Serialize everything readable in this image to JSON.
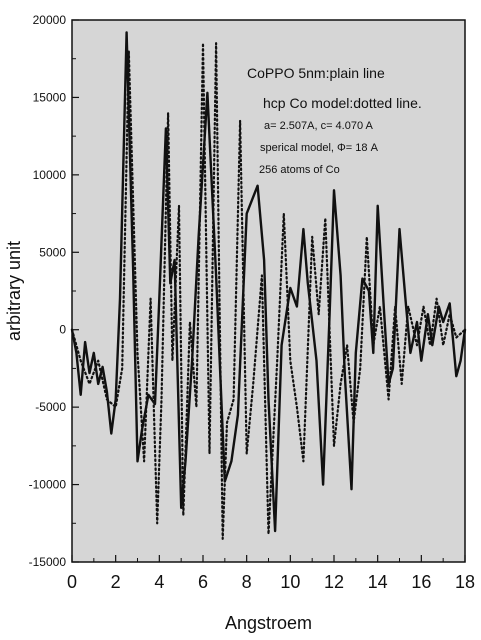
{
  "chart_data": {
    "type": "line",
    "title": "",
    "xlabel": "Angstroem",
    "ylabel": "arbitrary unit",
    "xlim": [
      0,
      18
    ],
    "ylim": [
      -15000,
      20000
    ],
    "xticks": [
      0,
      2,
      4,
      6,
      8,
      10,
      12,
      14,
      16,
      18
    ],
    "yticks": [
      -15000,
      -10000,
      -5000,
      0,
      5000,
      10000,
      15000,
      20000
    ],
    "grid": false,
    "legend": "none",
    "colors": {
      "background": "#d6d6d6",
      "line": "#111111"
    },
    "annotations": [
      "CoPPO 5nm:plain line",
      "hcp Co model:dotted line.",
      "a= 2.507A, c= 4.070 A",
      "sperical model, Φ= 18 A",
      "256 atoms of Co"
    ],
    "series": [
      {
        "style": "solid",
        "x": [
          0.0,
          0.2,
          0.4,
          0.6,
          0.8,
          1.0,
          1.2,
          1.4,
          1.6,
          1.8,
          2.0,
          2.2,
          2.5,
          2.8,
          3.0,
          3.2,
          3.5,
          3.8,
          4.0,
          4.3,
          4.5,
          4.7,
          5.0,
          5.2,
          5.5,
          5.8,
          6.2,
          6.6,
          7.0,
          7.3,
          7.6,
          8.0,
          8.5,
          8.8,
          9.0,
          9.3,
          9.6,
          10.0,
          10.3,
          10.6,
          10.8,
          11.0,
          11.2,
          11.5,
          11.8,
          12.0,
          12.3,
          12.5,
          12.8,
          13.0,
          13.3,
          13.6,
          13.8,
          14.0,
          14.3,
          14.5,
          14.7,
          15.0,
          15.3,
          15.5,
          15.8,
          16.0,
          16.3,
          16.5,
          16.8,
          17.0,
          17.3,
          17.6,
          17.8,
          18.0
        ],
        "y": [
          0,
          -1500,
          -4200,
          -800,
          -2800,
          -1500,
          -3500,
          -2400,
          -4000,
          -6700,
          -4500,
          2000,
          19200,
          4000,
          -8500,
          -6500,
          -4200,
          -4800,
          2000,
          13000,
          3000,
          4500,
          -11500,
          -8500,
          -2000,
          6000,
          15300,
          3500,
          -9800,
          -8500,
          -5500,
          7500,
          9300,
          4500,
          -4500,
          -13000,
          -1000,
          2700,
          1500,
          6500,
          3000,
          500,
          -2000,
          -10000,
          1000,
          9000,
          3500,
          -3000,
          -10300,
          -1500,
          3300,
          2500,
          -1500,
          8000,
          1000,
          -3500,
          -2500,
          6500,
          1500,
          -1500,
          500,
          -2000,
          1000,
          -1000,
          1500,
          500,
          1700,
          -3000,
          -2000,
          0
        ]
      },
      {
        "style": "dotted",
        "x": [
          0.0,
          0.4,
          0.8,
          1.2,
          1.6,
          2.0,
          2.3,
          2.6,
          3.0,
          3.3,
          3.6,
          3.9,
          4.1,
          4.4,
          4.6,
          4.9,
          5.1,
          5.4,
          5.7,
          6.0,
          6.3,
          6.6,
          6.9,
          7.1,
          7.4,
          7.7,
          8.0,
          8.3,
          8.7,
          9.0,
          9.4,
          9.7,
          10.0,
          10.3,
          10.6,
          11.0,
          11.3,
          11.6,
          12.0,
          12.3,
          12.6,
          12.9,
          13.2,
          13.5,
          13.8,
          14.1,
          14.5,
          14.8,
          15.1,
          15.4,
          15.8,
          16.1,
          16.4,
          16.7,
          17.0,
          17.3,
          17.6,
          18.0
        ],
        "y": [
          0,
          -2000,
          -3500,
          -2000,
          -4500,
          -5000,
          -2500,
          18000,
          -1500,
          -8500,
          2000,
          -12500,
          -4500,
          14000,
          -2000,
          8000,
          -12000,
          500,
          -5000,
          18500,
          -8000,
          18500,
          -13500,
          -6000,
          -4500,
          13500,
          -8000,
          -3500,
          3500,
          -13200,
          -2000,
          7500,
          -2000,
          -5000,
          -8500,
          6000,
          1000,
          7200,
          -7500,
          -3500,
          -1000,
          -6000,
          -2500,
          6000,
          -1000,
          1500,
          -4500,
          1500,
          -3500,
          1500,
          -1000,
          1500,
          -1000,
          2000,
          -1000,
          1000,
          -500,
          0
        ]
      }
    ]
  }
}
